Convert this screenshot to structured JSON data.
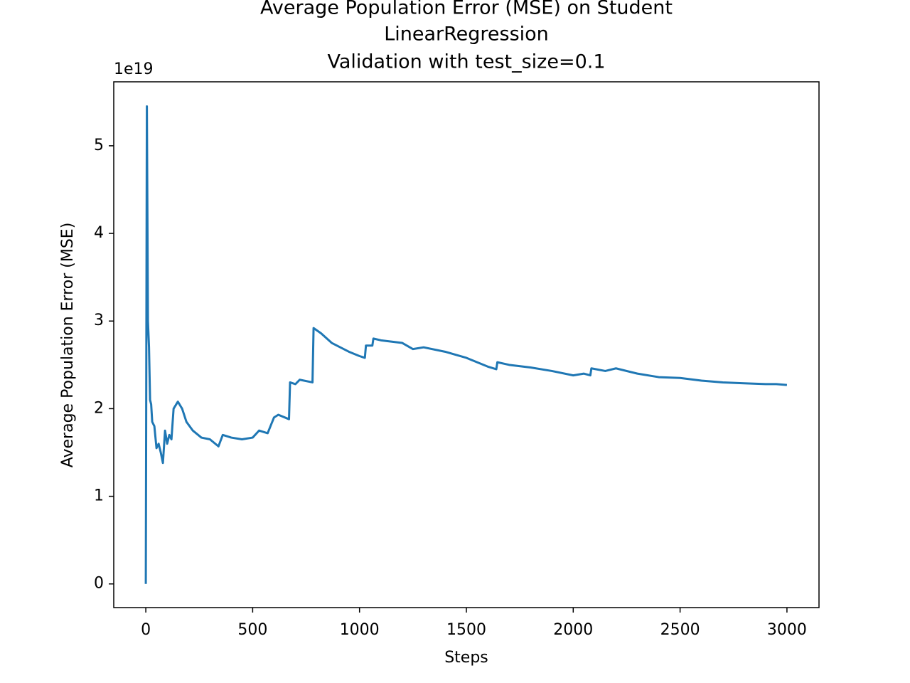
{
  "chart_data": {
    "type": "line",
    "title": [
      "Average Population Error (MSE) on Student",
      "LinearRegression",
      "Validation with test_size=0.1"
    ],
    "x_label": "Steps",
    "y_label": "Average Population Error (MSE)",
    "y_offset_label": "1e19",
    "x": [
      0,
      5,
      10,
      15,
      20,
      25,
      30,
      40,
      50,
      60,
      70,
      80,
      90,
      100,
      110,
      120,
      130,
      150,
      170,
      190,
      220,
      260,
      300,
      340,
      360,
      400,
      450,
      500,
      530,
      570,
      600,
      620,
      670,
      675,
      700,
      720,
      780,
      785,
      820,
      870,
      950,
      1000,
      1025,
      1030,
      1060,
      1065,
      1100,
      1200,
      1250,
      1300,
      1400,
      1500,
      1600,
      1640,
      1645,
      1700,
      1800,
      1900,
      2000,
      2050,
      2080,
      2085,
      2150,
      2200,
      2300,
      2400,
      2500,
      2600,
      2700,
      2800,
      2900,
      2950,
      3000
    ],
    "series": [
      {
        "name": "Average Population Error (MSE)",
        "color": "#1f77b4",
        "values": [
          0,
          5.45,
          3.0,
          2.7,
          2.1,
          2.05,
          1.85,
          1.8,
          1.55,
          1.6,
          1.5,
          1.38,
          1.75,
          1.6,
          1.7,
          1.65,
          2.0,
          2.08,
          2.0,
          1.85,
          1.75,
          1.67,
          1.65,
          1.57,
          1.7,
          1.67,
          1.65,
          1.67,
          1.75,
          1.72,
          1.9,
          1.93,
          1.88,
          2.3,
          2.28,
          2.33,
          2.3,
          2.92,
          2.86,
          2.75,
          2.65,
          2.6,
          2.58,
          2.72,
          2.72,
          2.8,
          2.78,
          2.75,
          2.68,
          2.7,
          2.65,
          2.58,
          2.48,
          2.45,
          2.53,
          2.5,
          2.47,
          2.43,
          2.38,
          2.4,
          2.38,
          2.46,
          2.43,
          2.46,
          2.4,
          2.36,
          2.35,
          2.32,
          2.3,
          2.29,
          2.28,
          2.28,
          2.27
        ]
      }
    ],
    "xlim": [
      -150,
      3150
    ],
    "xticks": [
      0,
      500,
      1000,
      1500,
      2000,
      2500,
      3000
    ],
    "ylim": [
      -0.27,
      5.73
    ],
    "yticks": [
      0,
      1,
      2,
      3,
      4,
      5
    ],
    "grid": false
  }
}
